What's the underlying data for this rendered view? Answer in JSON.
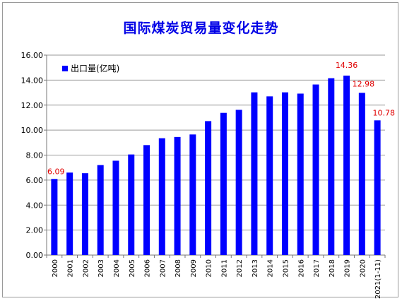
{
  "chart_data": {
    "type": "bar",
    "title": "国际煤炭贸易量变化走势",
    "categories": [
      "2000",
      "2001",
      "2002",
      "2003",
      "2004",
      "2005",
      "2006",
      "2007",
      "2008",
      "2009",
      "2010",
      "2011",
      "2012",
      "2013",
      "2014",
      "2015",
      "2016",
      "2017",
      "2018",
      "2019",
      "2020",
      "2021(1-11)"
    ],
    "series": [
      {
        "name": "出口量(亿吨)",
        "color": "#0000ff",
        "values": [
          6.09,
          6.6,
          6.55,
          7.2,
          7.55,
          8.05,
          8.8,
          9.35,
          9.45,
          9.65,
          10.72,
          11.38,
          11.62,
          13.02,
          12.7,
          13.02,
          12.92,
          13.65,
          14.15,
          14.36,
          12.98,
          10.78
        ]
      }
    ],
    "data_labels": [
      {
        "index": 0,
        "text": "6.09"
      },
      {
        "index": 19,
        "text": "14.36"
      },
      {
        "index": 20,
        "text": "12.98"
      },
      {
        "index": 21,
        "text": "10.78"
      }
    ],
    "ylim": [
      0,
      16
    ],
    "yticks": [
      "0.00",
      "2.00",
      "4.00",
      "6.00",
      "8.00",
      "10.00",
      "12.00",
      "14.00",
      "16.00"
    ],
    "grid": true,
    "legend": "top-left",
    "label_color": "#e00000",
    "xlabel": "",
    "ylabel": ""
  }
}
